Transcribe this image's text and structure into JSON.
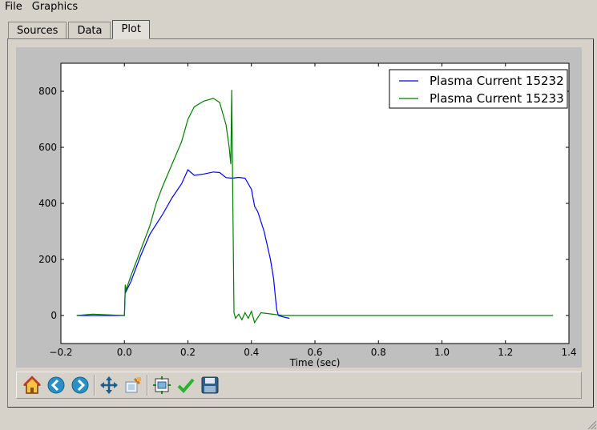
{
  "menubar": {
    "items": [
      "File",
      "Graphics"
    ]
  },
  "tabs": [
    {
      "label": "Sources",
      "active": false
    },
    {
      "label": "Data",
      "active": false
    },
    {
      "label": "Plot",
      "active": true
    }
  ],
  "toolbar": {
    "buttons": [
      "home-icon",
      "back-icon",
      "forward-icon",
      "pan-icon",
      "zoom-icon",
      "subplot-configure-icon",
      "apply-icon",
      "save-icon"
    ]
  },
  "chart_data": {
    "type": "line",
    "xlabel": "Time (sec)",
    "ylabel": "",
    "xlim": [
      -0.2,
      1.4
    ],
    "ylim": [
      -100,
      900
    ],
    "xticks": [
      "−0.2",
      "0.0",
      "0.2",
      "0.4",
      "0.6",
      "0.8",
      "1.0",
      "1.2",
      "1.4"
    ],
    "yticks": [
      "0",
      "200",
      "400",
      "600",
      "800"
    ],
    "legend_position": "upper-right",
    "series": [
      {
        "name": "Plasma Current 15232",
        "color": "#0000ff",
        "x": [
          -0.15,
          0.0,
          0.003,
          0.005,
          0.02,
          0.05,
          0.08,
          0.12,
          0.15,
          0.18,
          0.2,
          0.22,
          0.25,
          0.28,
          0.3,
          0.32,
          0.34,
          0.36,
          0.38,
          0.4,
          0.41,
          0.42,
          0.44,
          0.46,
          0.47,
          0.475,
          0.48,
          0.485,
          0.5,
          0.52
        ],
        "y": [
          0,
          0,
          105,
          85,
          120,
          210,
          290,
          360,
          420,
          470,
          520,
          500,
          505,
          512,
          510,
          492,
          490,
          493,
          490,
          450,
          390,
          370,
          300,
          200,
          130,
          70,
          20,
          0,
          -5,
          -10
        ]
      },
      {
        "name": "Plasma Current 15233",
        "color": "#007f00",
        "x": [
          -0.15,
          -0.1,
          0.0,
          0.003,
          0.005,
          0.02,
          0.05,
          0.08,
          0.1,
          0.12,
          0.15,
          0.18,
          0.2,
          0.22,
          0.25,
          0.28,
          0.3,
          0.32,
          0.33,
          0.335,
          0.338,
          0.34,
          0.345,
          0.35,
          0.36,
          0.37,
          0.38,
          0.39,
          0.4,
          0.41,
          0.43,
          0.5,
          0.7,
          1.0,
          1.35
        ],
        "y": [
          0,
          5,
          0,
          110,
          90,
          140,
          230,
          320,
          400,
          460,
          540,
          620,
          700,
          745,
          765,
          775,
          760,
          680,
          600,
          540,
          805,
          560,
          10,
          -10,
          5,
          -15,
          10,
          -10,
          15,
          -25,
          10,
          0,
          0,
          0,
          0
        ]
      }
    ]
  }
}
